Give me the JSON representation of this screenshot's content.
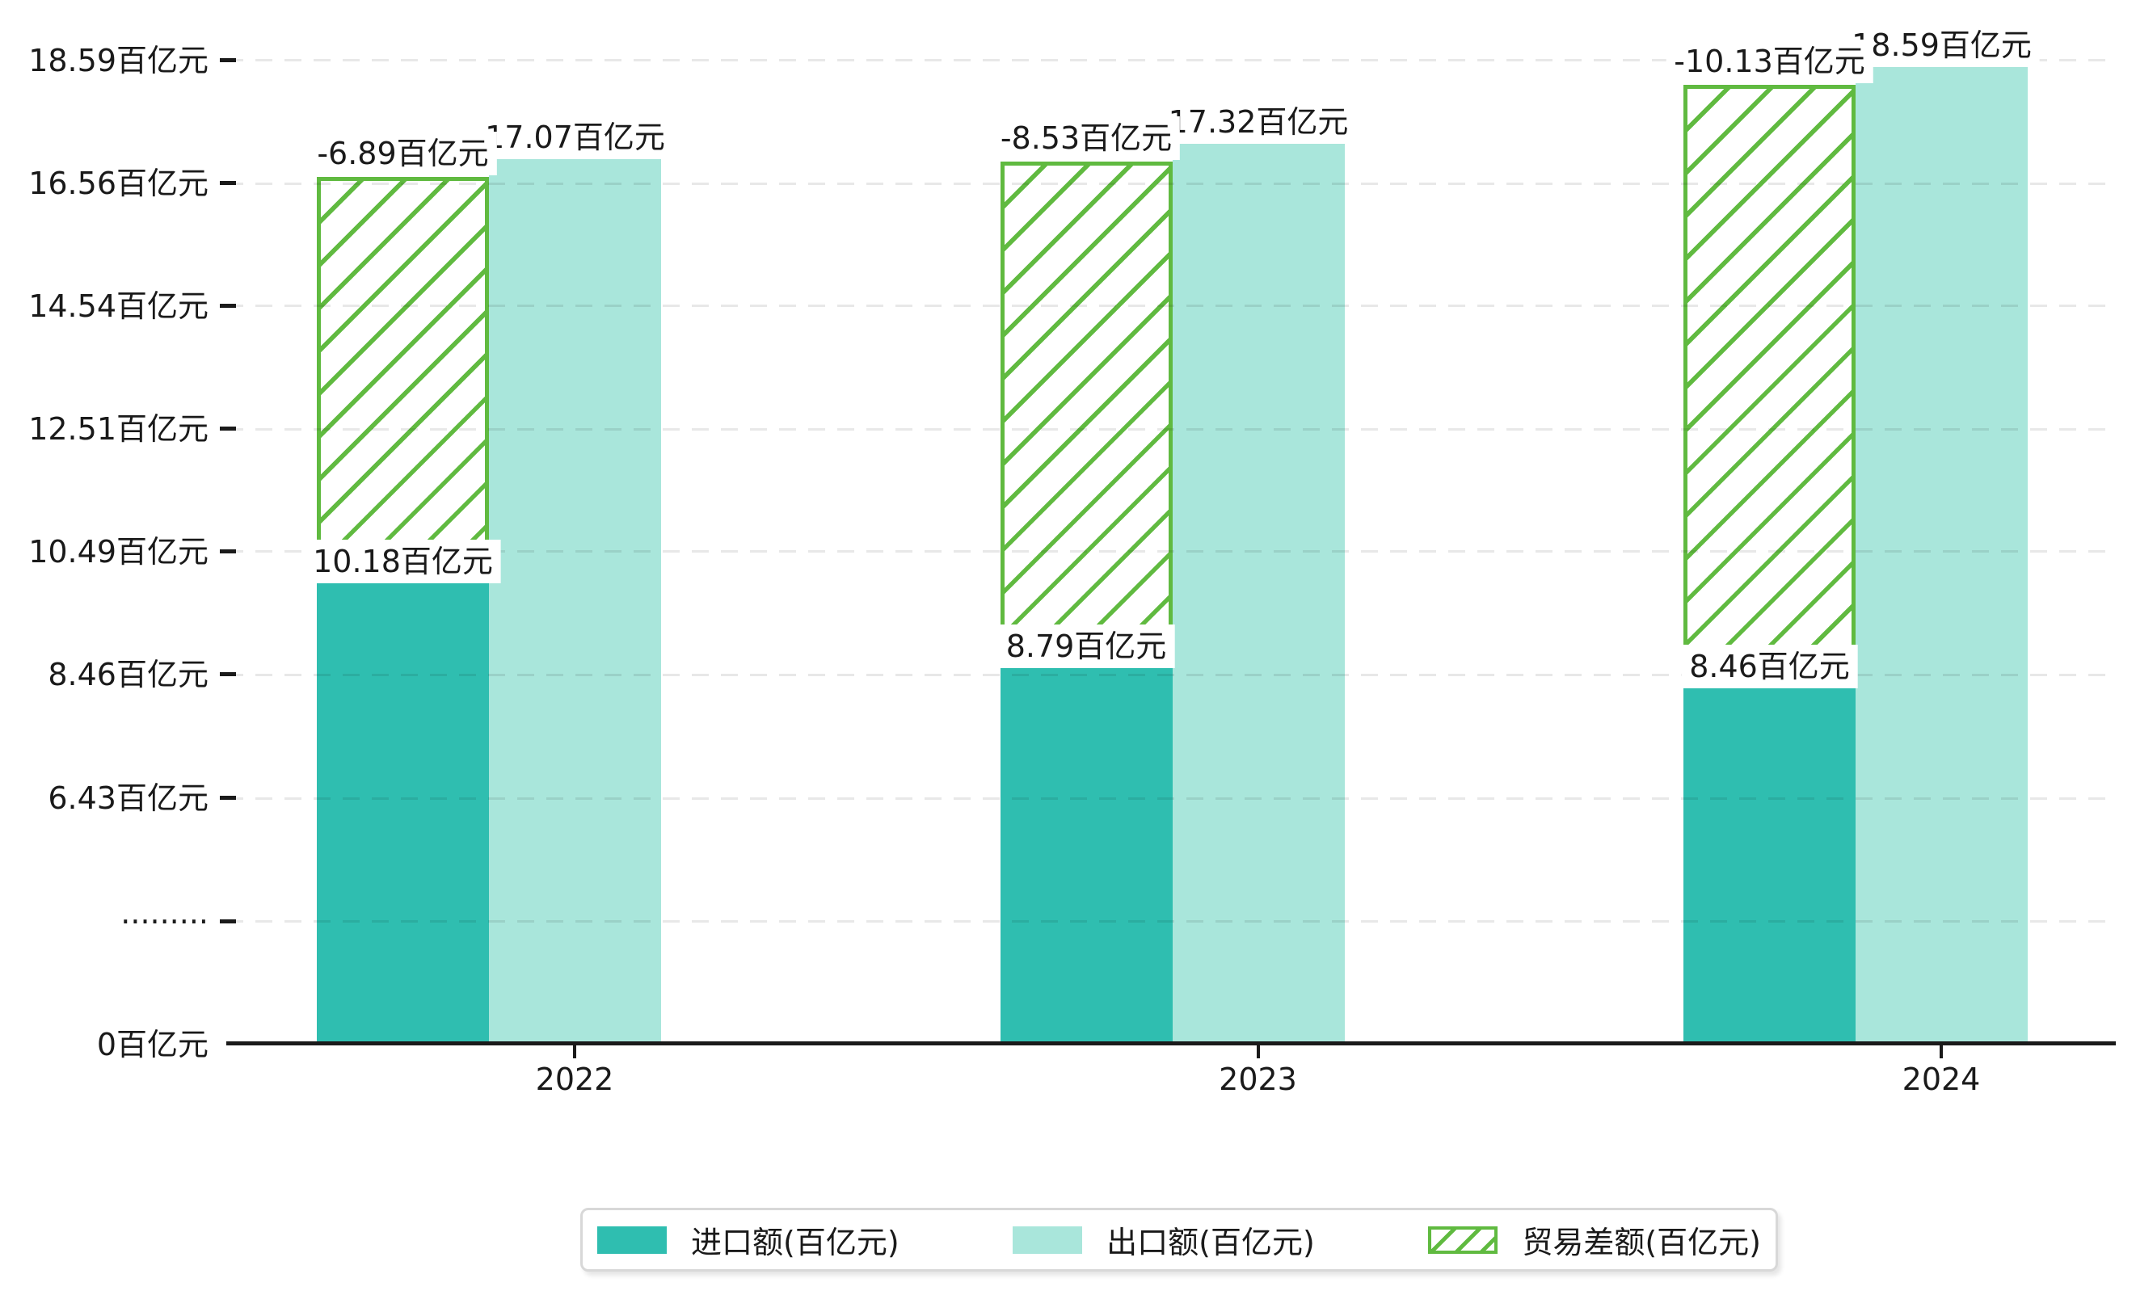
{
  "chart_data": {
    "type": "bar",
    "title": "",
    "unit_suffix": "百亿元",
    "categories": [
      "2022",
      "2023",
      "2024"
    ],
    "series": [
      {
        "name": "进口额(百亿元)",
        "role": "import",
        "color": "#2FBEB0",
        "values": [
          10.18,
          8.79,
          8.46
        ]
      },
      {
        "name": "出口额(百亿元)",
        "role": "export",
        "color": "#A9E6DB",
        "values": [
          17.07,
          17.32,
          18.59
        ]
      },
      {
        "name": "贸易差额(百亿元)",
        "role": "trade-balance",
        "color": "#60BA40",
        "pattern": "diagonal-hatch",
        "values": [
          -6.89,
          -8.53,
          -10.13
        ]
      }
    ],
    "bar_value_labels": {
      "import": [
        "10.18百亿元",
        "8.79百亿元",
        "8.46百亿元"
      ],
      "export": [
        "17.07百亿元",
        "17.32百亿元",
        "18.59百亿元"
      ],
      "trade_balance": [
        "-6.89百亿元",
        "-8.53百亿元",
        "-10.13百亿元"
      ]
    },
    "y_axis": {
      "unit": "百亿元",
      "ticks": [
        {
          "label": "0百亿元",
          "value": 0
        },
        {
          "label": "·········",
          "value": null,
          "axis_break": true
        },
        {
          "label": "6.43百亿元",
          "value": 6.43
        },
        {
          "label": "8.46百亿元",
          "value": 8.46
        },
        {
          "label": "10.49百亿元",
          "value": 10.49
        },
        {
          "label": "12.51百亿元",
          "value": 12.51
        },
        {
          "label": "14.54百亿元",
          "value": 14.54
        },
        {
          "label": "16.56百亿元",
          "value": 16.56
        },
        {
          "label": "18.59百亿元",
          "value": 18.59
        }
      ],
      "axis_break_between": [
        0,
        6.43
      ],
      "grid": "dashed-horizontal-over-bars"
    },
    "x_axis": {
      "categories": [
        "2022",
        "2023",
        "2024"
      ]
    },
    "legend_position": "bottom",
    "colors": {
      "axis": "#1a1a1a",
      "label_background": "#ffffff",
      "legend_border": "#d8d8d8",
      "gridline": "rgba(0,0,0,0.09)"
    }
  }
}
